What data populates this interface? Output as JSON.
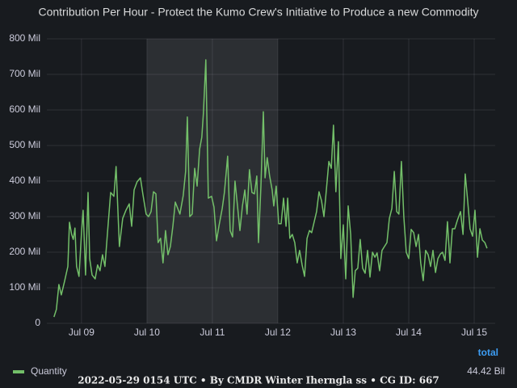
{
  "chart_data": {
    "type": "line",
    "title": "Contribution Per Hour - Protect the Kumo Crew's Initiative to Produce a new Commodity",
    "x": [
      -10.1,
      -9.2,
      -8.3,
      -7.4,
      -6.2,
      -5.0,
      -4.4,
      -3.6,
      -3.0,
      -2.4,
      -1.8,
      -0.9,
      0,
      0.6,
      1.5,
      2.4,
      3.0,
      3.9,
      5.0,
      5.9,
      6.8,
      7.7,
      8.6,
      9.5,
      10.7,
      11.9,
      12.7,
      13.9,
      15.1,
      16.3,
      17.5,
      18.4,
      19.3,
      20.4,
      21.6,
      22.5,
      23.7,
      24.6,
      25.5,
      26.4,
      27.3,
      28.1,
      29.0,
      29.9,
      30.8,
      31.7,
      32.6,
      33.5,
      34.4,
      35.3,
      36.1,
      37.3,
      38.2,
      38.8,
      39.7,
      40.6,
      41.5,
      42.4,
      43.3,
      44.1,
      44.7,
      45.6,
      46.5,
      47.7,
      48.6,
      49.5,
      50.4,
      51.6,
      52.4,
      53.6,
      54.5,
      55.4,
      56.3,
      57.2,
      58.1,
      59.0,
      59.9,
      60.7,
      61.6,
      62.5,
      63.4,
      64.3,
      64.9,
      65.8,
      66.7,
      67.3,
      68.1,
      69.0,
      69.9,
      70.5,
      71.4,
      72.3,
      73.2,
      74.1,
      75.0,
      75.6,
      76.4,
      77.3,
      78.2,
      79.1,
      80.0,
      80.9,
      81.8,
      82.7,
      83.6,
      84.4,
      85.3,
      86.2,
      87.1,
      88.0,
      88.9,
      89.8,
      90.7,
      91.6,
      92.4,
      93.3,
      94.2,
      95.1,
      96.0,
      96.9,
      97.8,
      98.7,
      99.6,
      100.4,
      101.3,
      102.2,
      103.1,
      104.0,
      104.9,
      105.8,
      106.7,
      107.6,
      108.4,
      109.3,
      110.2,
      111.1,
      112.0,
      112.9,
      113.8,
      114.7,
      115.6,
      116.4,
      117.3,
      118.2,
      119.1,
      120.0,
      120.9,
      121.8,
      122.7,
      123.6,
      124.4,
      125.3,
      126.2,
      127.1,
      128.0,
      128.9,
      129.8,
      130.7,
      131.6,
      132.4,
      133.3,
      134.2,
      135.1,
      136.0,
      136.9,
      137.8,
      139.0,
      139.9,
      140.7,
      141.6,
      142.5,
      143.4,
      144.3,
      145.2,
      146.1,
      147.0,
      147.9,
      148.7
    ],
    "series": [
      {
        "name": "Quantity",
        "color": "#73bf69",
        "values": [
          18,
          39,
          109,
          80,
          118,
          160,
          284,
          250,
          236,
          268,
          160,
          132,
          255,
          318,
          136,
          368,
          182,
          136,
          125,
          164,
          148,
          193,
          160,
          250,
          368,
          357,
          441,
          216,
          295,
          318,
          336,
          273,
          375,
          398,
          409,
          364,
          307,
          300,
          314,
          370,
          364,
          227,
          239,
          170,
          261,
          193,
          216,
          273,
          341,
          323,
          307,
          359,
          427,
          580,
          300,
          307,
          436,
          386,
          489,
          523,
          591,
          741,
          352,
          357,
          327,
          232,
          273,
          323,
          368,
          470,
          261,
          243,
          400,
          330,
          261,
          330,
          375,
          307,
          432,
          368,
          364,
          414,
          227,
          386,
          595,
          409,
          466,
          414,
          375,
          330,
          386,
          280,
          280,
          352,
          273,
          352,
          239,
          250,
          227,
          170,
          205,
          164,
          132,
          239,
          261,
          255,
          284,
          314,
          370,
          345,
          300,
          375,
          455,
          436,
          557,
          370,
          511,
          182,
          277,
          125,
          330,
          250,
          73,
          148,
          155,
          236,
          155,
          141,
          205,
          130,
          200,
          186,
          198,
          148,
          205,
          216,
          227,
          295,
          323,
          427,
          314,
          307,
          455,
          300,
          200,
          182,
          264,
          255,
          216,
          250,
          170,
          120,
          205,
          193,
          160,
          205,
          143,
          182,
          195,
          200,
          177,
          286,
          170,
          266,
          266,
          289,
          314,
          250,
          420,
          345,
          266,
          245,
          318,
          186,
          266,
          234,
          227,
          211
        ]
      }
    ],
    "xlim": [
      -12.7,
      151.7
    ],
    "xticks": [
      {
        "value": 0,
        "label": "Jul 09"
      },
      {
        "value": 24,
        "label": "Jul 10"
      },
      {
        "value": 48,
        "label": "Jul 11"
      },
      {
        "value": 72,
        "label": "Jul 12"
      },
      {
        "value": 96,
        "label": "Jul 13"
      },
      {
        "value": 120,
        "label": "Jul 14"
      },
      {
        "value": 144,
        "label": "Jul 15"
      }
    ],
    "ylim": [
      0,
      800
    ],
    "yticks": [
      0,
      {
        "value": 100,
        "label": "100 Mil"
      },
      {
        "value": 200,
        "label": "200 Mil"
      },
      {
        "value": 300,
        "label": "300 Mil"
      },
      {
        "value": 400,
        "label": "400 Mil"
      },
      {
        "value": 500,
        "label": "500 Mil"
      },
      {
        "value": 600,
        "label": "600 Mil"
      },
      {
        "value": 700,
        "label": "700 Mil"
      },
      {
        "value": 800,
        "label": "800 Mil"
      }
    ],
    "grid": true,
    "shaded_range": [
      24,
      72
    ],
    "legend": {
      "column": "total",
      "values": [
        "44.42 Bil"
      ]
    },
    "footer": "2022-05-29 0154 UTC • By CMDR Winter Iherngla ss • CG ID: 667"
  }
}
